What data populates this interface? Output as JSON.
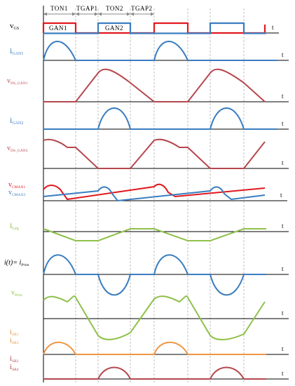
{
  "colors": {
    "red": "#e0191f",
    "blue": "#3a7dc0",
    "maroon": "#b5484e",
    "green": "#8fc04a",
    "orange": "#ee9644",
    "black": "#000000",
    "grid": "#9a9a9a"
  },
  "phases": [
    {
      "label": "TON1"
    },
    {
      "label": "TGAP1"
    },
    {
      "label": "TON2"
    },
    {
      "label": "TGAP2"
    }
  ],
  "time_label": "t",
  "gate_labels": {
    "gan1": "GAN1",
    "gan2": "GAN2"
  },
  "signals": [
    {
      "main": "v",
      "sub": "GS",
      "color": "#000000"
    },
    {
      "main": "i",
      "sub": "GAN1",
      "color": "#3a7dc0"
    },
    {
      "main": "v",
      "sub": "DS_GAN1",
      "color": "#b5484e"
    },
    {
      "main": "i",
      "sub": "GAN2",
      "color": "#3a7dc0"
    },
    {
      "main": "v",
      "sub": "DS_GAN2",
      "color": "#b5484e"
    },
    {
      "main": "v",
      "sub": "CMAX1",
      "color": "#e0191f"
    },
    {
      "main": "v",
      "sub": "CMAX2",
      "color": "#3a7dc0"
    },
    {
      "main": "i",
      "sub": "Leq",
      "color": "#8fc04a"
    },
    {
      "main": "i(t)= i",
      "sub": "Prim",
      "color": "#000000"
    },
    {
      "main": "v",
      "sub": "Prim",
      "color": "#8fc04a"
    },
    {
      "main": "i",
      "sub": "SR1",
      "color": "#ee9644"
    },
    {
      "main": "i",
      "sub": "SR3",
      "color": "#ee9644"
    },
    {
      "main": "i",
      "sub": "SR2",
      "color": "#b5484e"
    },
    {
      "main": "i",
      "sub": "SR4",
      "color": "#b5484e"
    }
  ]
}
